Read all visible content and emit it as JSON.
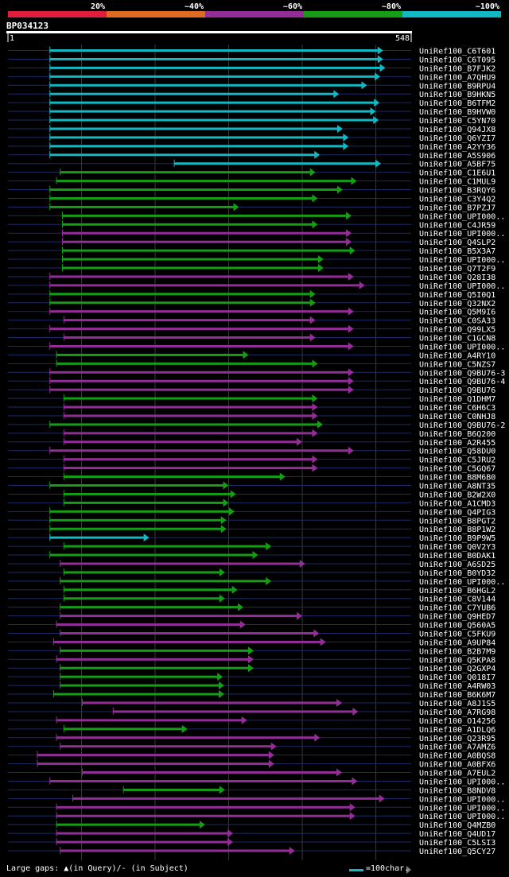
{
  "identity_scale": {
    "bands": [
      {
        "label": "20%",
        "color": "#e01e3c"
      },
      {
        "label": "~40%",
        "color": "#e06a1e"
      },
      {
        "label": "~60%",
        "color": "#932d98"
      },
      {
        "label": "~80%",
        "color": "#159d15"
      },
      {
        "label": "~100%",
        "color": "#12b8c4"
      }
    ]
  },
  "query": {
    "id": "BP034123",
    "start_label": "1",
    "end_label": "548",
    "length": 548
  },
  "legend": {
    "large_gaps": "Large gaps:",
    "in_query": "(in Query)/",
    "in_subject": "- (in Subject)",
    "scale_note": "=100char."
  },
  "hits": [
    {
      "name": "UniRef100_C6T601",
      "start": 57,
      "end": 510,
      "color": "#12b8c4"
    },
    {
      "name": "UniRef100_C6T095",
      "start": 57,
      "end": 510,
      "color": "#12b8c4"
    },
    {
      "name": "UniRef100_B7FJK2",
      "start": 57,
      "end": 513,
      "color": "#12b8c4"
    },
    {
      "name": "UniRef100_A7QHU9",
      "start": 57,
      "end": 506,
      "color": "#12b8c4"
    },
    {
      "name": "UniRef100_B9RPU4",
      "start": 57,
      "end": 488,
      "color": "#12b8c4"
    },
    {
      "name": "UniRef100_B9HKN5",
      "start": 57,
      "end": 450,
      "color": "#12b8c4"
    },
    {
      "name": "UniRef100_B6TFM2",
      "start": 57,
      "end": 505,
      "color": "#12b8c4"
    },
    {
      "name": "UniRef100_B9HVW0",
      "start": 57,
      "end": 500,
      "color": "#12b8c4"
    },
    {
      "name": "UniRef100_C5YN70",
      "start": 57,
      "end": 504,
      "color": "#12b8c4"
    },
    {
      "name": "UniRef100_Q94JX8",
      "start": 57,
      "end": 455,
      "color": "#12b8c4"
    },
    {
      "name": "UniRef100_Q6YZI7",
      "start": 57,
      "end": 463,
      "color": "#12b8c4"
    },
    {
      "name": "UniRef100_A2YY36",
      "start": 57,
      "end": 463,
      "color": "#12b8c4"
    },
    {
      "name": "UniRef100_A5S906",
      "start": 57,
      "end": 424,
      "color": "#12b8c4"
    },
    {
      "name": "UniRef100_A5BF75",
      "start": 226,
      "end": 507,
      "color": "#12b8c4"
    },
    {
      "name": "UniRef100_C1E6U1",
      "start": 71,
      "end": 418,
      "color": "#159d15"
    },
    {
      "name": "UniRef100_C1MUL9",
      "start": 66,
      "end": 474,
      "color": "#159d15"
    },
    {
      "name": "UniRef100_B3RQY6",
      "start": 57,
      "end": 455,
      "color": "#159d15"
    },
    {
      "name": "UniRef100_C3Y4Q2",
      "start": 57,
      "end": 421,
      "color": "#159d15"
    },
    {
      "name": "UniRef100_B7PZJ7",
      "start": 57,
      "end": 314,
      "color": "#159d15"
    },
    {
      "name": "UniRef100_UPI000..",
      "start": 74,
      "end": 467,
      "color": "#159d15"
    },
    {
      "name": "UniRef100_C4JR59",
      "start": 74,
      "end": 421,
      "color": "#159d15"
    },
    {
      "name": "UniRef100_UPI000..",
      "start": 74,
      "end": 467,
      "color": "#932d98"
    },
    {
      "name": "UniRef100_Q4SLP2",
      "start": 74,
      "end": 467,
      "color": "#932d98"
    },
    {
      "name": "UniRef100_B5X3A7",
      "start": 74,
      "end": 472,
      "color": "#159d15"
    },
    {
      "name": "UniRef100_UPI000..",
      "start": 74,
      "end": 429,
      "color": "#159d15"
    },
    {
      "name": "UniRef100_Q7T2F9",
      "start": 74,
      "end": 429,
      "color": "#159d15"
    },
    {
      "name": "UniRef100_Q28I38",
      "start": 57,
      "end": 470,
      "color": "#932d98"
    },
    {
      "name": "UniRef100_UPI000..",
      "start": 57,
      "end": 485,
      "color": "#932d98"
    },
    {
      "name": "UniRef100_Q5I0Q1",
      "start": 57,
      "end": 418,
      "color": "#159d15"
    },
    {
      "name": "UniRef100_Q32NX2",
      "start": 57,
      "end": 418,
      "color": "#159d15"
    },
    {
      "name": "UniRef100_Q5M9I6",
      "start": 57,
      "end": 470,
      "color": "#932d98"
    },
    {
      "name": "UniRef100_C0SA33",
      "start": 76,
      "end": 418,
      "color": "#932d98"
    },
    {
      "name": "UniRef100_Q99LX5",
      "start": 57,
      "end": 470,
      "color": "#932d98"
    },
    {
      "name": "UniRef100_C1GCN8",
      "start": 76,
      "end": 418,
      "color": "#932d98"
    },
    {
      "name": "UniRef100_UPI000..",
      "start": 57,
      "end": 470,
      "color": "#932d98"
    },
    {
      "name": "UniRef100_A4RY10",
      "start": 66,
      "end": 327,
      "color": "#159d15"
    },
    {
      "name": "UniRef100_C5NZS7",
      "start": 66,
      "end": 421,
      "color": "#159d15"
    },
    {
      "name": "UniRef100_Q9BU76-3",
      "start": 57,
      "end": 470,
      "color": "#932d98"
    },
    {
      "name": "UniRef100_Q9BU76-4",
      "start": 57,
      "end": 470,
      "color": "#932d98"
    },
    {
      "name": "UniRef100_Q9BU76",
      "start": 57,
      "end": 470,
      "color": "#932d98"
    },
    {
      "name": "UniRef100_Q1DHM7",
      "start": 76,
      "end": 421,
      "color": "#159d15"
    },
    {
      "name": "UniRef100_C6H6C3",
      "start": 76,
      "end": 421,
      "color": "#932d98"
    },
    {
      "name": "UniRef100_C0NHJ8",
      "start": 76,
      "end": 421,
      "color": "#932d98"
    },
    {
      "name": "UniRef100_Q9BU76-2",
      "start": 57,
      "end": 428,
      "color": "#159d15"
    },
    {
      "name": "UniRef100_B6Q200",
      "start": 76,
      "end": 421,
      "color": "#932d98"
    },
    {
      "name": "UniRef100_A2R455",
      "start": 76,
      "end": 400,
      "color": "#932d98"
    },
    {
      "name": "UniRef100_Q58DU0",
      "start": 57,
      "end": 470,
      "color": "#932d98"
    },
    {
      "name": "UniRef100_C5JRU2",
      "start": 76,
      "end": 421,
      "color": "#932d98"
    },
    {
      "name": "UniRef100_C5GQ67",
      "start": 76,
      "end": 421,
      "color": "#932d98"
    },
    {
      "name": "UniRef100_B8M6B0",
      "start": 76,
      "end": 377,
      "color": "#159d15"
    },
    {
      "name": "UniRef100_A8NT35",
      "start": 57,
      "end": 300,
      "color": "#159d15"
    },
    {
      "name": "UniRef100_B2W2X0",
      "start": 76,
      "end": 310,
      "color": "#159d15"
    },
    {
      "name": "UniRef100_A1CMD3",
      "start": 76,
      "end": 300,
      "color": "#159d15"
    },
    {
      "name": "UniRef100_Q4PIG3",
      "start": 57,
      "end": 308,
      "color": "#159d15"
    },
    {
      "name": "UniRef100_B8PGT2",
      "start": 57,
      "end": 297,
      "color": "#159d15"
    },
    {
      "name": "UniRef100_B8P1W2",
      "start": 57,
      "end": 297,
      "color": "#159d15"
    },
    {
      "name": "UniRef100_B9P9W5",
      "start": 57,
      "end": 192,
      "color": "#12b8c4"
    },
    {
      "name": "UniRef100_Q0V2Y3",
      "start": 76,
      "end": 358,
      "color": "#159d15"
    },
    {
      "name": "UniRef100_B0DAK1",
      "start": 57,
      "end": 340,
      "color": "#159d15"
    },
    {
      "name": "UniRef100_A6SD25",
      "start": 71,
      "end": 404,
      "color": "#932d98"
    },
    {
      "name": "UniRef100_B0YD32",
      "start": 76,
      "end": 295,
      "color": "#159d15"
    },
    {
      "name": "UniRef100_UPI000..",
      "start": 71,
      "end": 358,
      "color": "#159d15"
    },
    {
      "name": "UniRef100_B6HGL2",
      "start": 76,
      "end": 312,
      "color": "#159d15"
    },
    {
      "name": "UniRef100_C8V144",
      "start": 76,
      "end": 295,
      "color": "#159d15"
    },
    {
      "name": "UniRef100_C7YUB6",
      "start": 71,
      "end": 320,
      "color": "#159d15"
    },
    {
      "name": "UniRef100_Q9HED7",
      "start": 71,
      "end": 400,
      "color": "#932d98"
    },
    {
      "name": "UniRef100_Q560A5",
      "start": 66,
      "end": 323,
      "color": "#932d98"
    },
    {
      "name": "UniRef100_C5FKU9",
      "start": 71,
      "end": 423,
      "color": "#932d98"
    },
    {
      "name": "UniRef100_A9UP84",
      "start": 62,
      "end": 432,
      "color": "#932d98"
    },
    {
      "name": "UniRef100_B2B7M9",
      "start": 71,
      "end": 334,
      "color": "#159d15"
    },
    {
      "name": "UniRef100_Q5KPA8",
      "start": 66,
      "end": 334,
      "color": "#932d98"
    },
    {
      "name": "UniRef100_Q2GXP4",
      "start": 71,
      "end": 334,
      "color": "#159d15"
    },
    {
      "name": "UniRef100_Q018I7",
      "start": 71,
      "end": 292,
      "color": "#159d15"
    },
    {
      "name": "UniRef100_A4RW03",
      "start": 71,
      "end": 294,
      "color": "#159d15"
    },
    {
      "name": "UniRef100_B6K6M7",
      "start": 62,
      "end": 294,
      "color": "#159d15"
    },
    {
      "name": "UniRef100_A8J1S5",
      "start": 101,
      "end": 454,
      "color": "#932d98"
    },
    {
      "name": "UniRef100_A7RG98",
      "start": 143,
      "end": 476,
      "color": "#932d98"
    },
    {
      "name": "UniRef100_O14256",
      "start": 66,
      "end": 325,
      "color": "#932d98"
    },
    {
      "name": "UniRef100_A1DLQ6",
      "start": 76,
      "end": 244,
      "color": "#159d15"
    },
    {
      "name": "UniRef100_Q23R95",
      "start": 66,
      "end": 424,
      "color": "#932d98"
    },
    {
      "name": "UniRef100_A7AMZ6",
      "start": 71,
      "end": 365,
      "color": "#932d98"
    },
    {
      "name": "UniRef100_A0BQS8",
      "start": 40,
      "end": 362,
      "color": "#932d98"
    },
    {
      "name": "UniRef100_A0BFX6",
      "start": 40,
      "end": 362,
      "color": "#932d98"
    },
    {
      "name": "UniRef100_A7EUL2",
      "start": 101,
      "end": 454,
      "color": "#932d98"
    },
    {
      "name": "UniRef100_UPI000..",
      "start": 57,
      "end": 475,
      "color": "#932d98"
    },
    {
      "name": "UniRef100_B8NDV8",
      "start": 157,
      "end": 295,
      "color": "#159d15"
    },
    {
      "name": "UniRef100_UPI000..",
      "start": 88,
      "end": 512,
      "color": "#932d98"
    },
    {
      "name": "UniRef100_UPI000..",
      "start": 66,
      "end": 472,
      "color": "#932d98"
    },
    {
      "name": "UniRef100_UPI000..",
      "start": 66,
      "end": 472,
      "color": "#932d98"
    },
    {
      "name": "UniRef100_Q4MZB0",
      "start": 66,
      "end": 268,
      "color": "#159d15"
    },
    {
      "name": "UniRef100_Q4UD17",
      "start": 66,
      "end": 306,
      "color": "#932d98"
    },
    {
      "name": "UniRef100_C5LSI3",
      "start": 66,
      "end": 306,
      "color": "#932d98"
    },
    {
      "name": "UniRef100_Q5CY27",
      "start": 71,
      "end": 390,
      "color": "#932d98"
    }
  ]
}
